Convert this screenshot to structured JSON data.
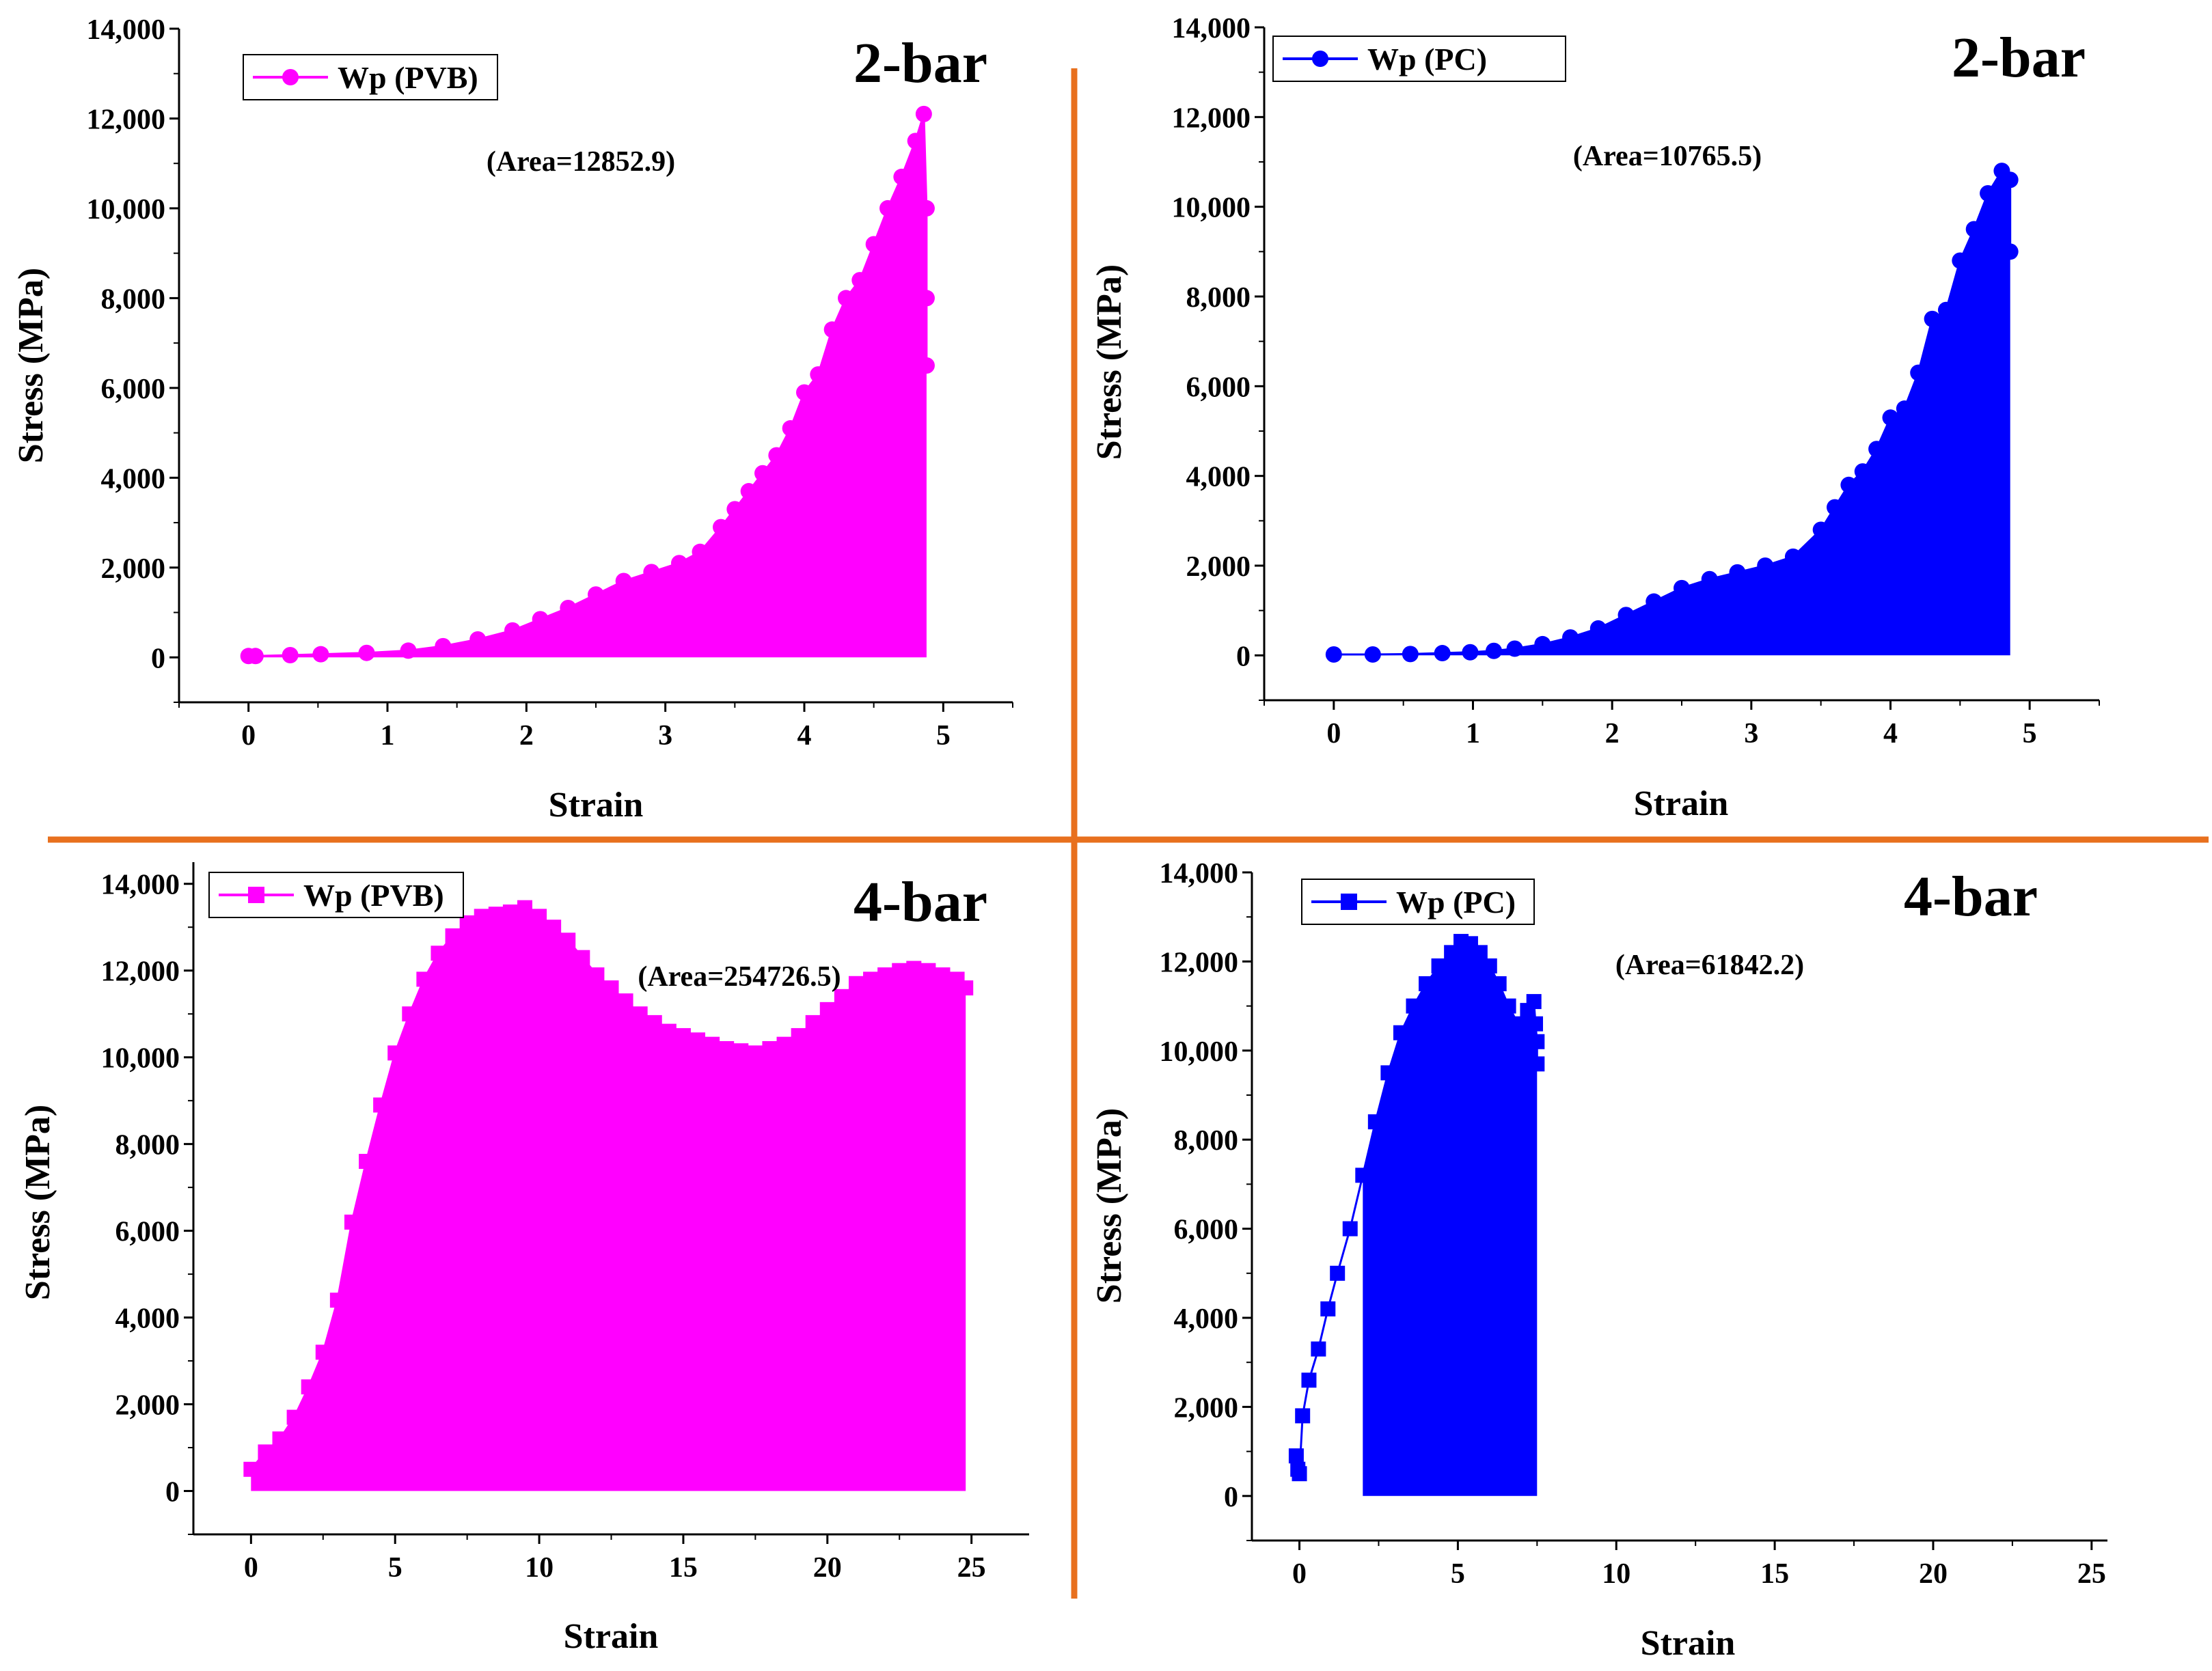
{
  "figure": {
    "divider_color": "#E8701E"
  },
  "chart_data": [
    {
      "type": "area",
      "panel_title": "2-bar",
      "legend": "Wp (PVB)",
      "marker": "circle",
      "color": "#FF00FF",
      "annotation": "(Area=12852.9)",
      "xlabel": "Strain",
      "ylabel": "Stress (MPa)",
      "xlim": [
        -0.5,
        5.5
      ],
      "ylim": [
        -1000,
        14000
      ],
      "xticks": [
        0,
        1,
        2,
        3,
        4,
        5
      ],
      "xtick_labels": [
        "0",
        "1",
        "2",
        "3",
        "4",
        "5"
      ],
      "yticks": [
        0,
        2000,
        4000,
        6000,
        8000,
        10000,
        12000,
        14000
      ],
      "ytick_labels": [
        "0",
        "2,000",
        "4,000",
        "6,000",
        "8,000",
        "10,000",
        "12,000",
        "14,000"
      ],
      "fill_from": 0,
      "x": [
        0,
        0.05,
        0.3,
        0.52,
        0.85,
        1.15,
        1.4,
        1.65,
        1.9,
        2.1,
        2.3,
        2.5,
        2.7,
        2.9,
        3.1,
        3.25,
        3.4,
        3.5,
        3.6,
        3.7,
        3.8,
        3.9,
        4.0,
        4.1,
        4.2,
        4.3,
        4.4,
        4.5,
        4.6,
        4.7,
        4.8,
        4.86,
        4.88,
        4.88,
        4.88
      ],
      "values": [
        30,
        30,
        50,
        70,
        100,
        150,
        250,
        400,
        600,
        850,
        1100,
        1400,
        1700,
        1900,
        2100,
        2350,
        2900,
        3300,
        3700,
        4100,
        4500,
        5100,
        5900,
        6300,
        7300,
        8000,
        8400,
        9200,
        10000,
        10700,
        11500,
        12100,
        10000,
        8000,
        6500
      ]
    },
    {
      "type": "area",
      "panel_title": "2-bar",
      "legend": "Wp (PC)",
      "marker": "circle",
      "color": "#0000FF",
      "annotation": "(Area=10765.5)",
      "xlabel": "Strain",
      "ylabel": "Stress (MPa)",
      "xlim": [
        -0.5,
        5.5
      ],
      "ylim": [
        -1000,
        14000
      ],
      "xticks": [
        0,
        1,
        2,
        3,
        4,
        5
      ],
      "xtick_labels": [
        "0",
        "1",
        "2",
        "3",
        "4",
        "5"
      ],
      "yticks": [
        0,
        2000,
        4000,
        6000,
        8000,
        10000,
        12000,
        14000
      ],
      "ytick_labels": [
        "0",
        "2,000",
        "4,000",
        "6,000",
        "8,000",
        "10,000",
        "12,000",
        "14,000"
      ],
      "fill_from": 0,
      "x": [
        0,
        0.28,
        0.55,
        0.78,
        0.98,
        1.15,
        1.3,
        1.5,
        1.7,
        1.9,
        2.1,
        2.3,
        2.5,
        2.7,
        2.9,
        3.1,
        3.3,
        3.5,
        3.6,
        3.7,
        3.8,
        3.9,
        4.0,
        4.1,
        4.2,
        4.3,
        4.4,
        4.5,
        4.6,
        4.7,
        4.8,
        4.86,
        4.86
      ],
      "values": [
        20,
        20,
        30,
        50,
        70,
        100,
        150,
        250,
        400,
        600,
        900,
        1200,
        1500,
        1700,
        1850,
        2000,
        2200,
        2800,
        3300,
        3800,
        4100,
        4600,
        5300,
        5500,
        6300,
        7500,
        7700,
        8800,
        9500,
        10300,
        10800,
        10600,
        9000
      ]
    },
    {
      "type": "area",
      "panel_title": "4-bar",
      "legend": "Wp (PVB)",
      "marker": "square",
      "color": "#FF00FF",
      "annotation": "(Area=254726.5)",
      "xlabel": "Strain",
      "ylabel": "Stress (MPa)",
      "xlim": [
        -2,
        27
      ],
      "ylim": [
        -1000,
        14500
      ],
      "xticks": [
        0,
        5,
        10,
        15,
        20,
        25
      ],
      "xtick_labels": [
        "0",
        "5",
        "10",
        "15",
        "20",
        "25"
      ],
      "yticks": [
        0,
        2000,
        4000,
        6000,
        8000,
        10000,
        12000,
        14000
      ],
      "ytick_labels": [
        "0",
        "2,000",
        "4,000",
        "6,000",
        "8,000",
        "10,000",
        "12,000",
        "14,000"
      ],
      "fill_from": 0,
      "x": [
        0,
        0.5,
        1,
        1.5,
        2,
        2.5,
        3,
        3.5,
        4,
        4.5,
        5,
        5.5,
        6,
        6.5,
        7,
        7.5,
        8,
        8.5,
        9,
        9.5,
        10,
        10.5,
        11,
        11.5,
        12,
        12.5,
        13,
        13.5,
        14,
        14.5,
        15,
        15.5,
        16,
        16.5,
        17,
        17.5,
        18,
        18.5,
        19,
        19.5,
        20,
        20.5,
        21,
        21.5,
        22,
        22.5,
        23,
        23.5,
        24,
        24.5,
        24.8
      ],
      "values": [
        500,
        900,
        1200,
        1700,
        2400,
        3200,
        4400,
        6200,
        7600,
        8900,
        10100,
        11000,
        11800,
        12400,
        12800,
        13100,
        13250,
        13300,
        13350,
        13450,
        13250,
        13000,
        12700,
        12300,
        11900,
        11600,
        11300,
        11000,
        10800,
        10600,
        10500,
        10400,
        10300,
        10200,
        10150,
        10100,
        10200,
        10300,
        10500,
        10800,
        11100,
        11400,
        11700,
        11800,
        11900,
        12000,
        12050,
        12000,
        11900,
        11800,
        11600
      ]
    },
    {
      "type": "area",
      "panel_title": "4-bar",
      "legend": "Wp (PC)",
      "marker": "square",
      "color": "#0000FF",
      "annotation": "(Area=61842.2)",
      "xlabel": "Strain",
      "ylabel": "Stress (MPa)",
      "xlim": [
        -1.5,
        25.5
      ],
      "ylim": [
        -1000,
        14000
      ],
      "xticks": [
        0,
        5,
        10,
        15,
        20,
        25
      ],
      "xtick_labels": [
        "0",
        "5",
        "10",
        "15",
        "20",
        "25"
      ],
      "yticks": [
        0,
        2000,
        4000,
        6000,
        8000,
        10000,
        12000,
        14000
      ],
      "ytick_labels": [
        "0",
        "2,000",
        "4,000",
        "6,000",
        "8,000",
        "10,000",
        "12,000",
        "14,000"
      ],
      "fill_from": 0,
      "fill_start_x": 1.8,
      "x": [
        -0.1,
        -0.05,
        0.0,
        0.1,
        0.3,
        0.6,
        0.9,
        1.2,
        1.6,
        2.0,
        2.4,
        2.8,
        3.2,
        3.6,
        4.0,
        4.4,
        4.8,
        5.1,
        5.4,
        5.7,
        6.0,
        6.3,
        6.6,
        6.9,
        7.2,
        7.4,
        7.45,
        7.5,
        7.5
      ],
      "values": [
        900,
        600,
        500,
        1800,
        2600,
        3300,
        4200,
        5000,
        6000,
        7200,
        8400,
        9500,
        10400,
        11000,
        11500,
        11900,
        12200,
        12450,
        12400,
        12200,
        11900,
        11500,
        11000,
        10600,
        10900,
        11100,
        10600,
        10200,
        9700
      ]
    }
  ]
}
